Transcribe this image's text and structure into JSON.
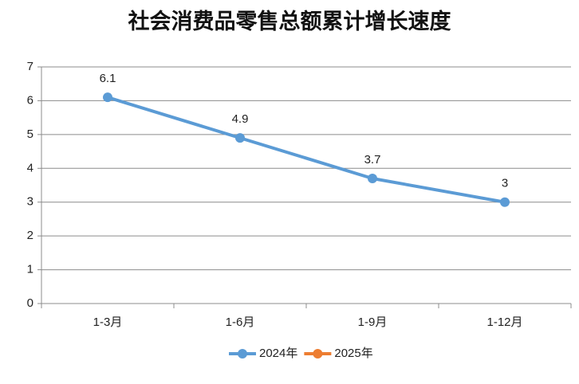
{
  "chart_data": {
    "type": "line",
    "title": "社会消费品零售总额累计增长速度",
    "categories": [
      "1-3月",
      "1-6月",
      "1-9月",
      "1-12月"
    ],
    "series": [
      {
        "name": "2024年",
        "color": "#5b9bd5",
        "values": [
          6.1,
          4.9,
          3.7,
          3
        ]
      },
      {
        "name": "2025年",
        "color": "#ed7d31",
        "values": [
          null,
          null,
          null,
          null
        ]
      }
    ],
    "ylim": [
      0,
      7
    ],
    "yticks": [
      0,
      1,
      2,
      3,
      4,
      5,
      6,
      7
    ],
    "grid": true,
    "legend": "bottom"
  }
}
